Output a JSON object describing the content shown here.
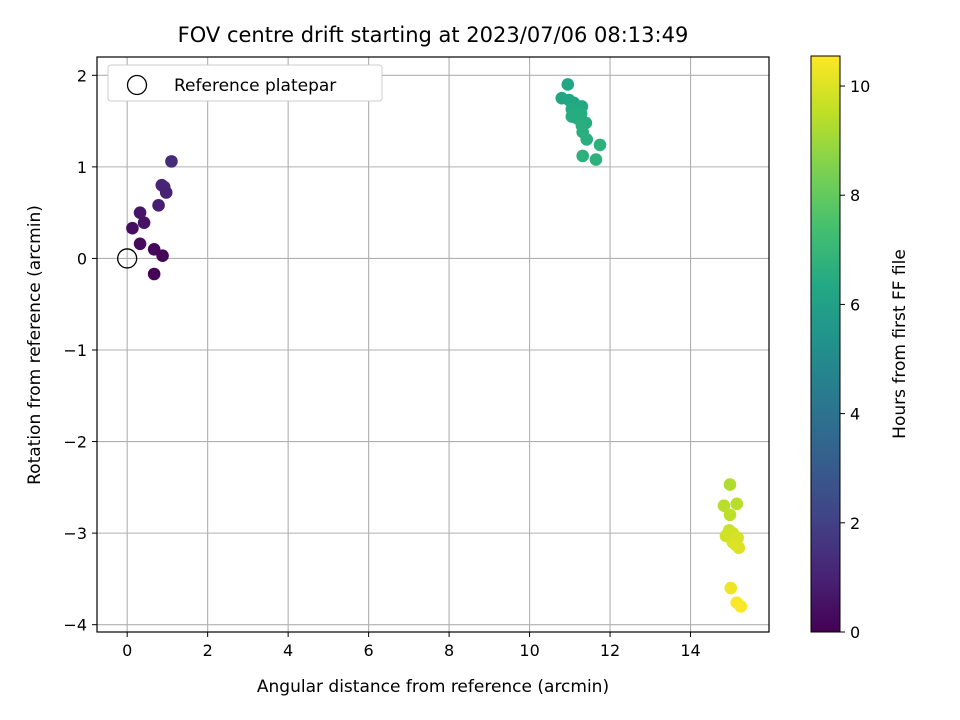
{
  "chart_data": {
    "type": "scatter",
    "title": "FOV centre drift starting at 2023/07/06 08:13:49",
    "xlabel": "Angular distance from reference (arcmin)",
    "ylabel": "Rotation from reference (arcmin)",
    "xlim": [
      -0.75,
      15.95
    ],
    "ylim": [
      -4.08,
      2.2
    ],
    "xticks": [
      0,
      2,
      4,
      6,
      8,
      10,
      12,
      14
    ],
    "yticks": [
      -4,
      -3,
      -2,
      -1,
      0,
      1,
      2
    ],
    "grid": true,
    "legend": {
      "placement": "top-left",
      "entries": [
        "Reference platepar"
      ]
    },
    "reference_point": {
      "x": 0,
      "y": 0,
      "label": "Reference platepar"
    },
    "colorbar": {
      "label": "Hours from first FF file",
      "range": [
        0,
        10.55
      ],
      "ticks": [
        0,
        2,
        4,
        6,
        8,
        10
      ],
      "colormap": "viridis"
    },
    "points": [
      {
        "x": 1.1,
        "y": 1.06,
        "h": 1.3
      },
      {
        "x": 0.86,
        "y": 0.8,
        "h": 1.1
      },
      {
        "x": 0.92,
        "y": 0.78,
        "h": 1.1
      },
      {
        "x": 0.97,
        "y": 0.72,
        "h": 1.0
      },
      {
        "x": 0.78,
        "y": 0.58,
        "h": 0.9
      },
      {
        "x": 0.32,
        "y": 0.5,
        "h": 0.6
      },
      {
        "x": 0.42,
        "y": 0.39,
        "h": 0.5
      },
      {
        "x": 0.13,
        "y": 0.33,
        "h": 0.4
      },
      {
        "x": 0.32,
        "y": 0.16,
        "h": 0.3
      },
      {
        "x": 0.67,
        "y": 0.1,
        "h": 0.2
      },
      {
        "x": 0.88,
        "y": 0.03,
        "h": 0.15
      },
      {
        "x": 0.67,
        "y": -0.17,
        "h": 0.05
      },
      {
        "x": 10.95,
        "y": 1.9,
        "h": 6.3
      },
      {
        "x": 10.8,
        "y": 1.75,
        "h": 6.2
      },
      {
        "x": 10.98,
        "y": 1.73,
        "h": 6.3
      },
      {
        "x": 11.1,
        "y": 1.7,
        "h": 6.3
      },
      {
        "x": 11.15,
        "y": 1.66,
        "h": 6.3
      },
      {
        "x": 11.05,
        "y": 1.63,
        "h": 6.4
      },
      {
        "x": 11.3,
        "y": 1.66,
        "h": 6.4
      },
      {
        "x": 11.2,
        "y": 1.61,
        "h": 6.4
      },
      {
        "x": 11.12,
        "y": 1.58,
        "h": 6.4
      },
      {
        "x": 11.28,
        "y": 1.58,
        "h": 6.5
      },
      {
        "x": 11.05,
        "y": 1.55,
        "h": 6.5
      },
      {
        "x": 11.18,
        "y": 1.53,
        "h": 6.5
      },
      {
        "x": 11.4,
        "y": 1.48,
        "h": 6.5
      },
      {
        "x": 11.3,
        "y": 1.45,
        "h": 6.6
      },
      {
        "x": 11.32,
        "y": 1.38,
        "h": 6.6
      },
      {
        "x": 11.42,
        "y": 1.3,
        "h": 6.6
      },
      {
        "x": 11.75,
        "y": 1.24,
        "h": 6.7
      },
      {
        "x": 11.32,
        "y": 1.12,
        "h": 6.7
      },
      {
        "x": 11.65,
        "y": 1.08,
        "h": 6.7
      },
      {
        "x": 14.98,
        "y": -2.47,
        "h": 9.3
      },
      {
        "x": 14.83,
        "y": -2.7,
        "h": 9.4
      },
      {
        "x": 15.15,
        "y": -2.68,
        "h": 9.4
      },
      {
        "x": 14.98,
        "y": -2.8,
        "h": 9.5
      },
      {
        "x": 14.96,
        "y": -2.97,
        "h": 9.7
      },
      {
        "x": 15.05,
        "y": -3.0,
        "h": 9.8
      },
      {
        "x": 14.88,
        "y": -3.03,
        "h": 9.8
      },
      {
        "x": 15.17,
        "y": -3.05,
        "h": 9.9
      },
      {
        "x": 15.05,
        "y": -3.1,
        "h": 9.9
      },
      {
        "x": 15.13,
        "y": -3.13,
        "h": 10.0
      },
      {
        "x": 15.2,
        "y": -3.16,
        "h": 10.0
      },
      {
        "x": 15.0,
        "y": -3.6,
        "h": 10.3
      },
      {
        "x": 15.15,
        "y": -3.76,
        "h": 10.5
      },
      {
        "x": 15.25,
        "y": -3.8,
        "h": 10.5
      }
    ]
  }
}
